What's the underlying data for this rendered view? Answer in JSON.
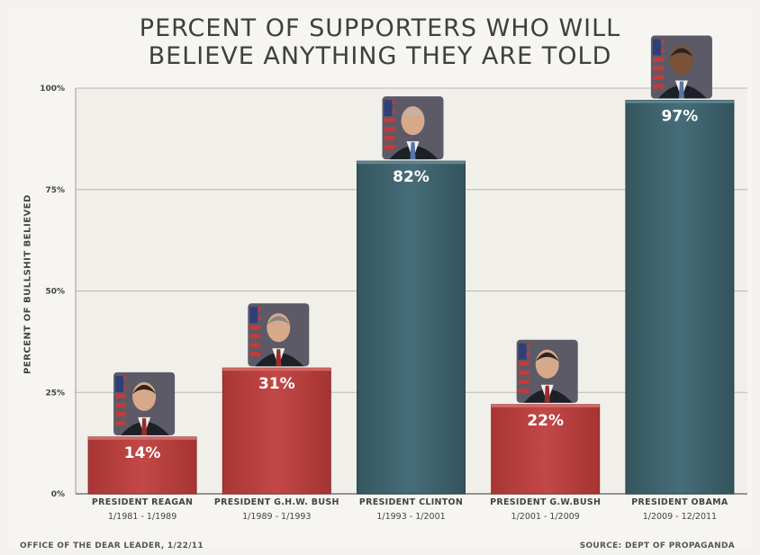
{
  "title_line1": "PERCENT OF SUPPORTERS WHO WILL",
  "title_line2": "BELIEVE ANYTHING THEY ARE TOLD",
  "ylabel": "PERCENT OF BULLSHIT BELIEVED",
  "footer_left": "OFFICE OF THE DEAR LEADER, 1/22/11",
  "footer_right": "SOURCE: DEPT OF PROPAGANDA",
  "chart_data": {
    "type": "bar",
    "title": "PERCENT OF SUPPORTERS WHO WILL BELIEVE ANYTHING THEY ARE TOLD",
    "ylabel": "PERCENT OF BULLSHIT BELIEVED",
    "xlabel": "",
    "ylim": [
      0,
      100
    ],
    "yticks": [
      0,
      25,
      50,
      75,
      100
    ],
    "ytick_labels": [
      "0%",
      "25%",
      "50%",
      "75%",
      "100%"
    ],
    "grid": true,
    "categories": [
      "PRESIDENT REAGAN",
      "PRESIDENT G.H.W. BUSH",
      "PRESIDENT CLINTON",
      "PRESIDENT G.W.BUSH",
      "PRESIDENT OBAMA"
    ],
    "terms": [
      "1/1981 - 1/1989",
      "1/1989 - 1/1993",
      "1/1993 - 1/2001",
      "1/2001 - 1/2009",
      "1/2009 - 12/2011"
    ],
    "values": [
      14,
      31,
      82,
      22,
      97
    ],
    "value_labels": [
      "14%",
      "31%",
      "82%",
      "22%",
      "97%"
    ],
    "party": [
      "republican",
      "republican",
      "democrat",
      "republican",
      "democrat"
    ],
    "colors": {
      "republican": "#b8403f",
      "democrat": "#3f6470"
    }
  }
}
